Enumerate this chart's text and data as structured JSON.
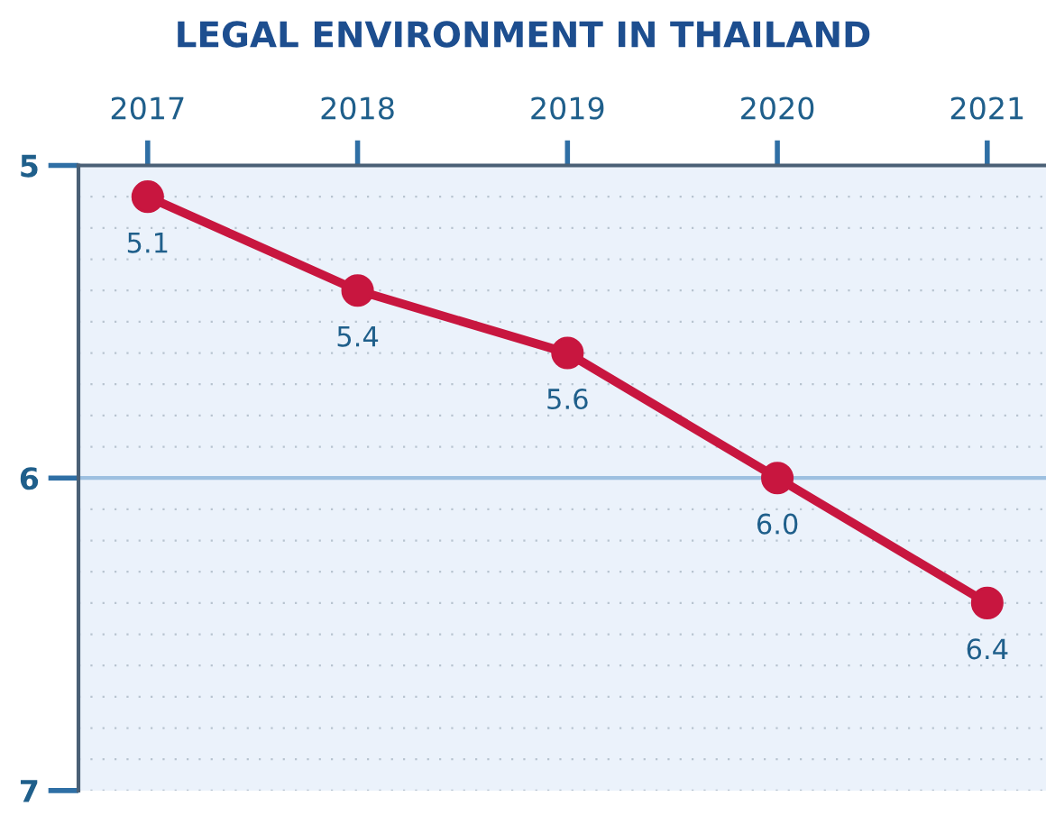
{
  "chart_data": {
    "type": "line",
    "title": "LEGAL ENVIRONMENT IN THAILAND",
    "categories": [
      "2017",
      "2018",
      "2019",
      "2020",
      "2021"
    ],
    "series": [
      {
        "color": "#c8163f",
        "values": [
          5.1,
          5.4,
          5.6,
          6.0,
          6.4
        ],
        "value_labels": [
          "5.1",
          "5.4",
          "5.6",
          "6.0",
          "6.4"
        ]
      }
    ],
    "ylim": [
      7,
      5
    ],
    "yticks": [
      5,
      {
        "value": 5.1,
        "label": null
      },
      {
        "value": 5.2,
        "label": null
      },
      {
        "value": 5.3,
        "label": null
      },
      {
        "value": 5.4,
        "label": null
      },
      {
        "value": 5.5,
        "label": null
      },
      {
        "value": 5.6,
        "label": null
      },
      {
        "value": 5.7,
        "label": null
      },
      {
        "value": 5.8,
        "label": null
      },
      {
        "value": 5.9,
        "label": null
      },
      6,
      {
        "value": 6.1,
        "label": null
      },
      {
        "value": 6.2,
        "label": null
      },
      {
        "value": 6.3,
        "label": null
      },
      {
        "value": 6.4,
        "label": null
      },
      {
        "value": 6.5,
        "label": null
      },
      {
        "value": 6.6,
        "label": null
      },
      {
        "value": 6.7,
        "label": null
      },
      {
        "value": 6.8,
        "label": null
      },
      {
        "value": 6.9,
        "label": null
      },
      7
    ],
    "ref_lines": [
      {
        "axis": "y",
        "value": 6,
        "color": "#9dc0e0"
      }
    ],
    "grid": "y",
    "marker": "circle",
    "line_style": "solid"
  }
}
